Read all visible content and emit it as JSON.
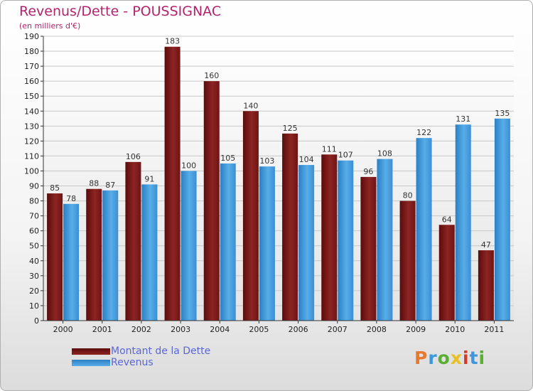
{
  "header": {
    "title": "Revenus/Dette - POUSSIGNAC",
    "subtitle": "(en milliers d'€)"
  },
  "chart_data": {
    "type": "bar",
    "categories": [
      "2000",
      "2001",
      "2002",
      "2003",
      "2004",
      "2005",
      "2006",
      "2007",
      "2008",
      "2009",
      "2010",
      "2011"
    ],
    "series": [
      {
        "name": "Montant de la Dette",
        "color": "#8b1c1c",
        "values": [
          85,
          88,
          106,
          183,
          160,
          140,
          125,
          111,
          96,
          80,
          64,
          47
        ]
      },
      {
        "name": "Revenus",
        "color": "#3d97dc",
        "values": [
          78,
          87,
          91,
          100,
          105,
          103,
          104,
          107,
          108,
          122,
          131,
          135
        ]
      }
    ],
    "ylim": [
      0,
      190
    ],
    "ytick_step": 10,
    "grid": true,
    "data_labels": true
  },
  "legend": {
    "items": [
      "Montant de la Dette",
      "Revenus"
    ]
  },
  "logo": {
    "text": "Proxiti",
    "colors": [
      "#e8782a",
      "#3d97dc",
      "#58b030",
      "#e8c020",
      "#d23a2a",
      "#3d97dc",
      "#58b030"
    ]
  }
}
